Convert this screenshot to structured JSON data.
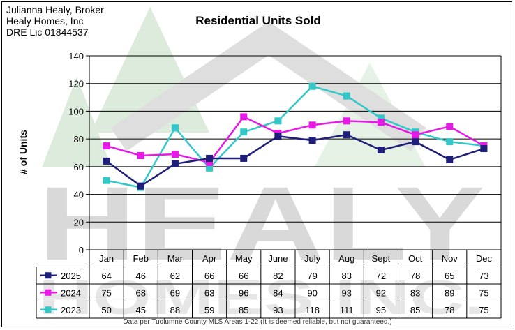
{
  "header": {
    "broker_lines": [
      "Julianna Healy, Broker",
      "Healy Homes, Inc",
      "DRE Lic 01844537"
    ]
  },
  "chart_data": {
    "type": "line",
    "title": "Residential Units Sold",
    "ylabel": "# of Units",
    "xlabel": "",
    "ylim": [
      0,
      140
    ],
    "yticks": [
      0,
      20,
      40,
      60,
      80,
      100,
      120,
      140
    ],
    "grid": true,
    "legend": "in data table below chart",
    "categories": [
      "Jan",
      "Feb",
      "Mar",
      "Apr",
      "May",
      "June",
      "July",
      "Aug",
      "Sept",
      "Oct",
      "Nov",
      "Dec"
    ],
    "series": [
      {
        "name": "2025",
        "color": "#1f1f7a",
        "marker": "square",
        "values": [
          64,
          46,
          62,
          66,
          66,
          82,
          79,
          83,
          72,
          78,
          65,
          73
        ]
      },
      {
        "name": "2024",
        "color": "#e619e6",
        "marker": "square",
        "values": [
          75,
          68,
          69,
          63,
          96,
          84,
          90,
          93,
          92,
          83,
          89,
          75
        ]
      },
      {
        "name": "2023",
        "color": "#33c7c7",
        "marker": "square",
        "values": [
          50,
          45,
          88,
          59,
          85,
          93,
          118,
          111,
          95,
          85,
          78,
          75
        ]
      }
    ]
  },
  "watermark": {
    "text_line1": "HEALY",
    "text_line2": "HOMES INC."
  },
  "footnote": "Data per Tuolumne County MLS Areas 1-22 (It is deemed reliable, but not guaranteed.)"
}
